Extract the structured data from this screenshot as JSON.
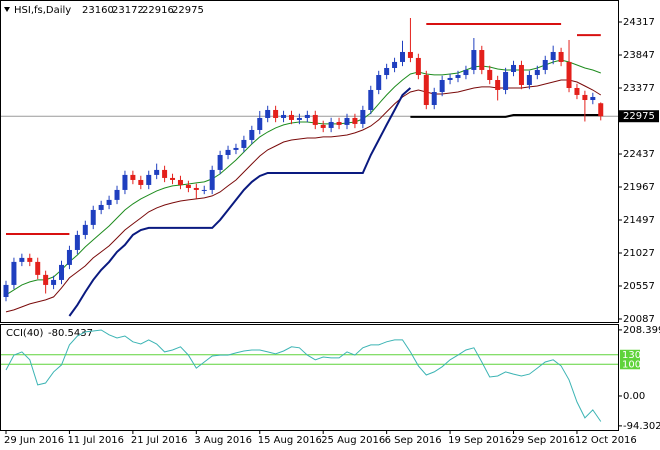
{
  "chart_data": {
    "type": "candlestick",
    "symbol": "HSI,fs,Daily",
    "categories": [
      "29 Jun 2016",
      null,
      null,
      null,
      null,
      null,
      null,
      null,
      "11 Jul 2016",
      null,
      null,
      null,
      null,
      null,
      null,
      null,
      "21 Jul 2016",
      null,
      null,
      null,
      null,
      null,
      null,
      null,
      "3 Aug 2016",
      null,
      null,
      null,
      null,
      null,
      null,
      null,
      "15 Aug 2016",
      null,
      null,
      null,
      null,
      null,
      null,
      null,
      "25 Aug 2016",
      null,
      null,
      null,
      null,
      null,
      null,
      null,
      "6 Sep 2016",
      null,
      null,
      null,
      null,
      null,
      null,
      null,
      "19 Sep 2016",
      null,
      null,
      null,
      null,
      null,
      null,
      null,
      "29 Sep 2016",
      null,
      null,
      null,
      null,
      null,
      null,
      null,
      "12 Oct 2016",
      null,
      null,
      null
    ],
    "ylim": [
      20044,
      24602
    ],
    "yticks": [
      24317,
      23847,
      23377,
      22437,
      21967,
      21497,
      21027,
      20557,
      20087
    ],
    "up_color": "#1f3fbf",
    "down_color": "#e3201b",
    "bid_color": "#9a9a9a",
    "open": [
      20400,
      20572,
      20900,
      20957,
      20900,
      20715,
      20572,
      20643,
      20857,
      21070,
      21284,
      21427,
      21640,
      21711,
      21783,
      21925,
      22139,
      22067,
      21996,
      22139,
      22210,
      22096,
      22067,
      21996,
      21953,
      21925,
      21925,
      22210,
      22423,
      22495,
      22523,
      22637,
      22779,
      22950,
      23064,
      22950,
      22993,
      22922,
      22950,
      22993,
      22851,
      22808,
      22893,
      22851,
      22950,
      22865,
      23064,
      23349,
      23562,
      23662,
      23748,
      23890,
      23805,
      23562,
      23135,
      23320,
      23491,
      23520,
      23562,
      23634,
      23918,
      23634,
      23491,
      23349,
      23605,
      23705,
      23420,
      23562,
      23634,
      23776,
      23890,
      23748,
      23377,
      23278,
      23206,
      23160
    ],
    "high": [
      20632,
      20960,
      21017,
      21017,
      20960,
      20775,
      20703,
      20917,
      21130,
      21344,
      21487,
      21700,
      21771,
      21843,
      21985,
      22199,
      22199,
      22127,
      22199,
      22300,
      22270,
      22156,
      22127,
      22056,
      22013,
      21985,
      22270,
      22483,
      22555,
      22583,
      22697,
      22839,
      23050,
      23124,
      23124,
      23053,
      23053,
      23010,
      23053,
      23053,
      22911,
      22953,
      22953,
      23010,
      23010,
      23124,
      23409,
      23622,
      23722,
      23808,
      24050,
      24374,
      23865,
      23622,
      23380,
      23551,
      23580,
      23622,
      23694,
      24089,
      23978,
      23694,
      23551,
      23665,
      23765,
      23765,
      23622,
      23694,
      23836,
      23980,
      23950,
      24061,
      23437,
      23338,
      23309,
      23172
    ],
    "low": [
      20340,
      20512,
      20840,
      20840,
      20655,
      20450,
      20512,
      20583,
      20797,
      21010,
      21224,
      21367,
      21580,
      21651,
      21723,
      21865,
      22007,
      21936,
      21936,
      22079,
      22036,
      22007,
      21936,
      21893,
      21800,
      21865,
      21865,
      22150,
      22363,
      22435,
      22463,
      22577,
      22719,
      22890,
      22890,
      22890,
      22862,
      22862,
      22890,
      22791,
      22748,
      22748,
      22791,
      22791,
      22805,
      22805,
      23004,
      23289,
      23502,
      23602,
      23688,
      23745,
      23502,
      23075,
      23075,
      23260,
      23431,
      23460,
      23502,
      23574,
      23574,
      23431,
      23200,
      23289,
      23545,
      23360,
      23360,
      23502,
      23574,
      23716,
      23688,
      23317,
      23218,
      22900,
      23146,
      22916
    ],
    "close": [
      20572,
      20900,
      20957,
      20900,
      20715,
      20572,
      20643,
      20857,
      21070,
      21284,
      21427,
      21640,
      21711,
      21783,
      21925,
      22139,
      22067,
      21996,
      22139,
      22210,
      22096,
      22067,
      21996,
      21953,
      21925,
      21925,
      22210,
      22423,
      22495,
      22523,
      22637,
      22779,
      22950,
      23064,
      22950,
      22993,
      22922,
      22950,
      22993,
      22851,
      22808,
      22893,
      22851,
      22950,
      22865,
      23064,
      23349,
      23562,
      23662,
      23748,
      23890,
      23805,
      23562,
      23135,
      23320,
      23491,
      23520,
      23562,
      23634,
      23918,
      23634,
      23491,
      23349,
      23605,
      23705,
      23420,
      23562,
      23634,
      23776,
      23890,
      23748,
      23377,
      23278,
      23206,
      23249,
      22975
    ],
    "overlays": [
      {
        "color": "#1e8c1e",
        "values": [
          20430,
          20501,
          20572,
          20615,
          20643,
          20643,
          20686,
          20786,
          20900,
          20999,
          21113,
          21213,
          21313,
          21412,
          21526,
          21640,
          21726,
          21797,
          21854,
          21911,
          21953,
          21982,
          21996,
          22010,
          22025,
          22039,
          22082,
          22153,
          22252,
          22352,
          22466,
          22580,
          22680,
          22751,
          22808,
          22851,
          22879,
          22893,
          22893,
          22879,
          22865,
          22865,
          22865,
          22879,
          22893,
          22936,
          23021,
          23150,
          23278,
          23392,
          23491,
          23577,
          23605,
          23577,
          23563,
          23563,
          23577,
          23591,
          23634,
          23676,
          23691,
          23676,
          23648,
          23634,
          23634,
          23634,
          23634,
          23662,
          23705,
          23748,
          23776,
          23748,
          23705,
          23662,
          23634,
          23591
        ]
      },
      {
        "color": "#7a0a0a",
        "values": [
          20188,
          20216,
          20259,
          20302,
          20330,
          20359,
          20401,
          20529,
          20672,
          20757,
          20843,
          20957,
          21042,
          21128,
          21241,
          21355,
          21441,
          21526,
          21612,
          21669,
          21711,
          21740,
          21768,
          21783,
          21797,
          21811,
          21840,
          21896,
          21982,
          22067,
          22181,
          22295,
          22409,
          22495,
          22551,
          22608,
          22637,
          22651,
          22665,
          22665,
          22680,
          22680,
          22694,
          22708,
          22737,
          22779,
          22836,
          22922,
          23036,
          23150,
          23249,
          23320,
          23349,
          23320,
          23292,
          23292,
          23306,
          23320,
          23349,
          23377,
          23392,
          23392,
          23377,
          23377,
          23377,
          23377,
          23392,
          23406,
          23434,
          23463,
          23491,
          23491,
          23463,
          23406,
          23349,
          23278
        ]
      },
      {
        "color": "#0a1a80",
        "width": 2,
        "values": [
          null,
          null,
          null,
          null,
          null,
          null,
          null,
          null,
          20130,
          20287,
          20472,
          20643,
          20786,
          20900,
          21042,
          21142,
          21284,
          21355,
          21384,
          21384,
          21384,
          21384,
          21384,
          21384,
          21384,
          21384,
          21384,
          21498,
          21640,
          21783,
          21925,
          22039,
          22124,
          22167,
          22167,
          22167,
          22167,
          22167,
          22167,
          22167,
          22167,
          22167,
          22167,
          22167,
          22167,
          22167,
          22423,
          22637,
          22851,
          23064,
          23278,
          23377,
          null,
          null,
          null,
          null,
          null,
          null,
          null,
          null,
          null,
          null,
          null,
          null,
          null,
          null,
          null,
          null,
          null,
          null,
          null,
          null,
          null,
          null,
          null,
          null
        ]
      },
      {
        "color": "#d81010",
        "width": 2,
        "values": [
          21298,
          21298,
          21298,
          21298,
          21298,
          21298,
          21298,
          21298,
          21298,
          null,
          null,
          null,
          null,
          null,
          null,
          null,
          null,
          null,
          null,
          null,
          null,
          null,
          null,
          null,
          null,
          null,
          null,
          null,
          null,
          null,
          null,
          null,
          null,
          null,
          null,
          null,
          null,
          null,
          null,
          null,
          null,
          null,
          null,
          null,
          null,
          null,
          null,
          null,
          null,
          null,
          null,
          null,
          null,
          24289,
          24289,
          24289,
          24289,
          24289,
          24289,
          24289,
          24289,
          24289,
          24289,
          24289,
          24289,
          24289,
          24289,
          24289,
          24289,
          24289,
          24289,
          null,
          24131,
          24131,
          24131,
          24131
        ]
      },
      {
        "color": "#000000",
        "width": 2,
        "values": [
          null,
          null,
          null,
          null,
          null,
          null,
          null,
          null,
          null,
          null,
          null,
          null,
          null,
          null,
          null,
          null,
          null,
          null,
          null,
          null,
          null,
          null,
          null,
          null,
          null,
          null,
          null,
          null,
          null,
          null,
          null,
          null,
          null,
          null,
          null,
          null,
          null,
          null,
          null,
          null,
          null,
          null,
          null,
          null,
          null,
          null,
          null,
          null,
          null,
          null,
          null,
          22965,
          22965,
          22965,
          22965,
          22965,
          22965,
          22965,
          22965,
          22965,
          22965,
          22965,
          22965,
          22965,
          22993,
          22993,
          22993,
          22993,
          22993,
          22993,
          22993,
          22993,
          22993,
          22993,
          22993,
          22993
        ]
      }
    ],
    "cci": {
      "type": "line",
      "label": "CCI(40)",
      "color": "#3cb4b4",
      "values": [
        82,
        129,
        139,
        114,
        35,
        41,
        76,
        98,
        161,
        189,
        202,
        205,
        208,
        193,
        183,
        189,
        171,
        164,
        177,
        164,
        139,
        145,
        155,
        129,
        88,
        107,
        126,
        129,
        129,
        136,
        142,
        145,
        145,
        139,
        133,
        142,
        155,
        152,
        129,
        114,
        123,
        120,
        120,
        139,
        129,
        152,
        161,
        161,
        171,
        177,
        177,
        139,
        95,
        66,
        76,
        92,
        114,
        129,
        145,
        152,
        107,
        60,
        63,
        76,
        69,
        63,
        69,
        88,
        107,
        114,
        95,
        51,
        -19,
        -69,
        -44,
        -80.5437
      ],
      "ylim": [
        -101,
        227
      ],
      "yticks": [
        208.3994,
        {
          "value": 0,
          "label": "0.00"
        },
        -94.3029
      ],
      "levels": [
        130,
        100
      ],
      "level_color": "#5fd33a"
    }
  }
}
